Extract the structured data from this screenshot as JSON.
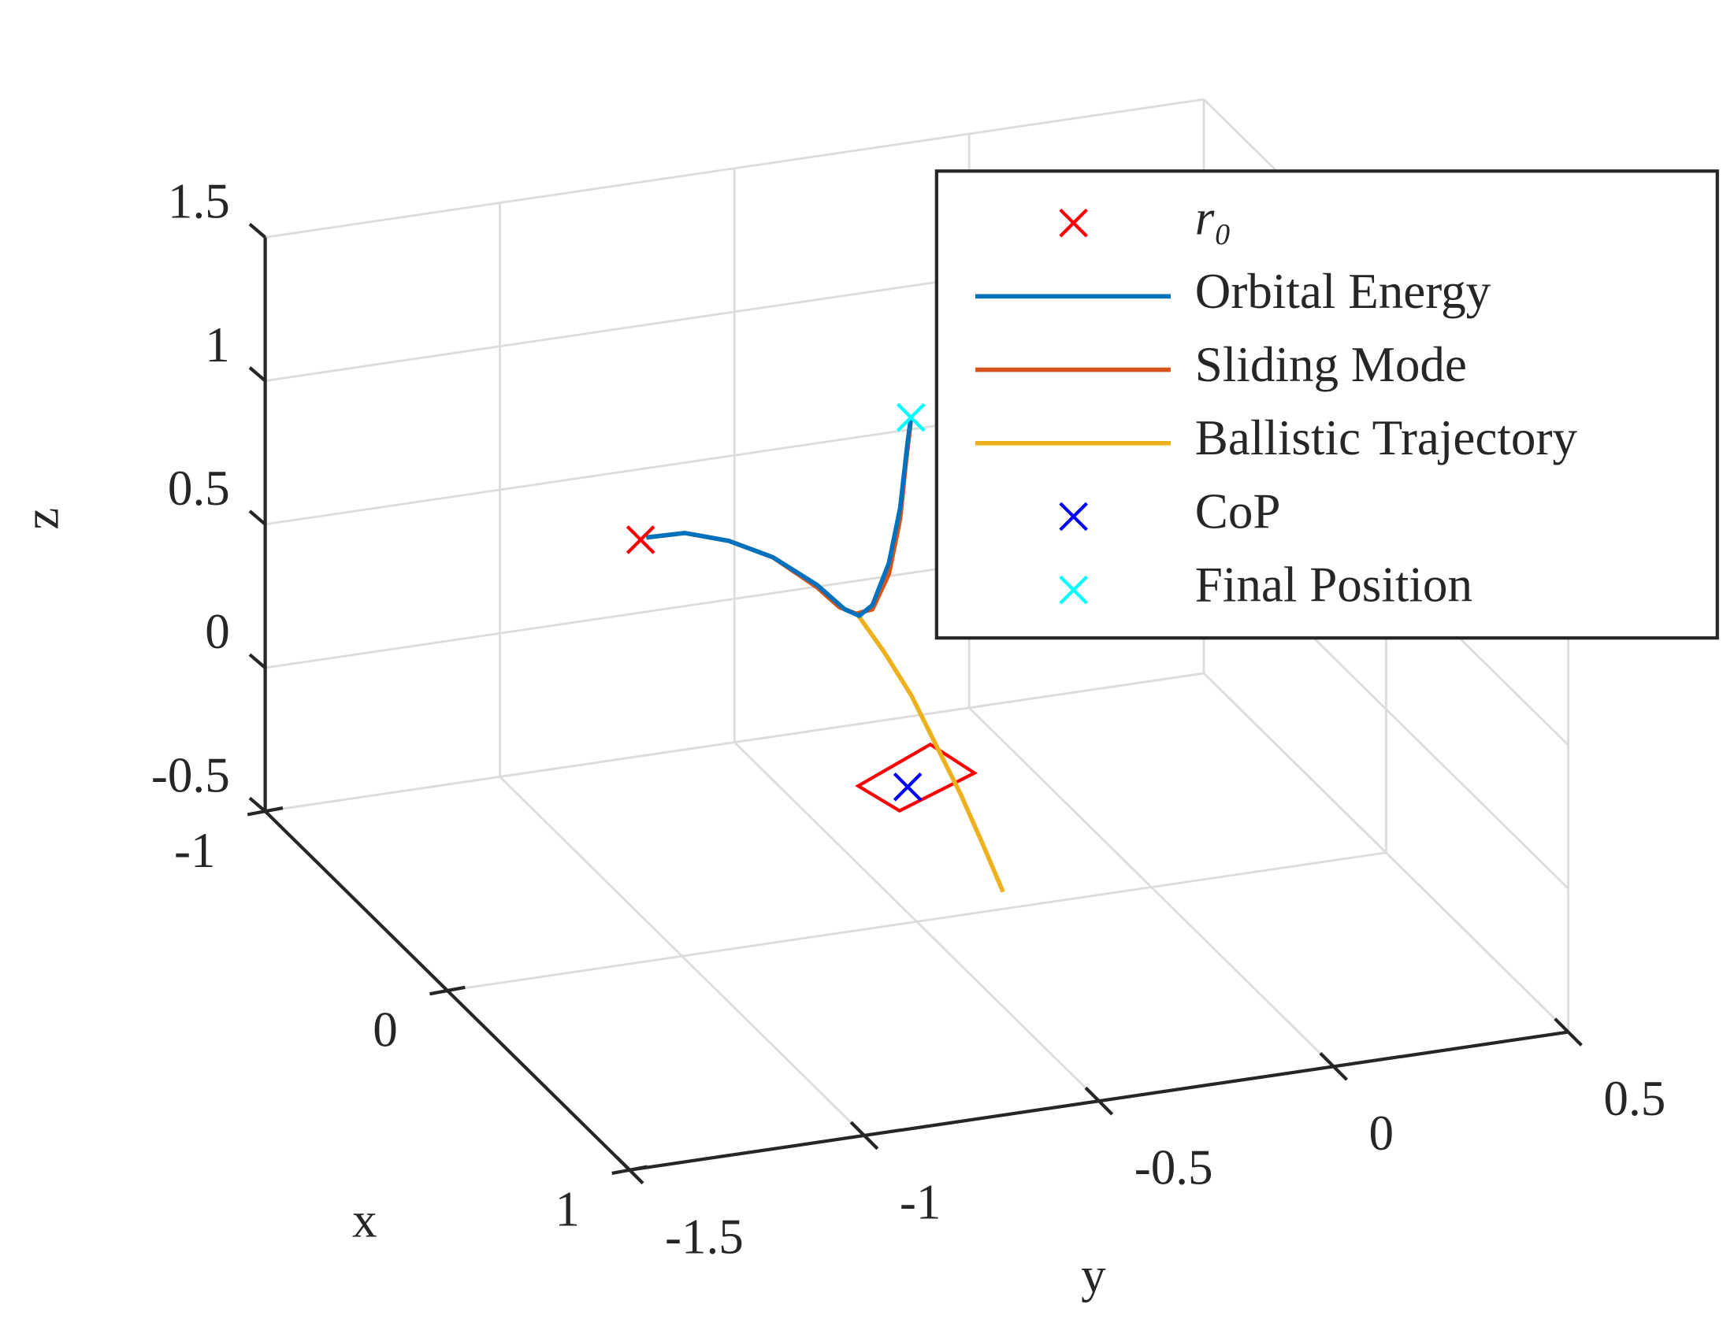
{
  "chart_data": {
    "type": "line3d",
    "xlabel": "x",
    "ylabel": "y",
    "zlabel": "z",
    "xlim": [
      -1,
      1
    ],
    "ylim": [
      -1.5,
      0.5
    ],
    "zlim": [
      -0.5,
      1.5
    ],
    "xticks": [
      -1,
      0,
      1
    ],
    "yticks": [
      -1.5,
      -1,
      -0.5,
      0,
      0.5
    ],
    "zticks": [
      -0.5,
      0,
      0.5,
      1,
      1.5
    ],
    "grid": true,
    "legend": "upper right",
    "polygon": {
      "color": "#ff0000",
      "x": [
        -0.7,
        -0.85,
        -0.68,
        -0.55
      ],
      "y": [
        -0.353,
        -0.141,
        -0.113,
        -0.323
      ],
      "z": [
        -0.5,
        -0.5,
        -0.5,
        -0.5
      ]
    },
    "series": [
      {
        "name": "r₀",
        "mode": "markers",
        "color": "#ff0000",
        "x": [
          -0.66
        ],
        "y": [
          -0.832
        ],
        "z": [
          0.498
        ]
      },
      {
        "name": "Orbital Energy",
        "mode": "lines",
        "color": "#0072bd",
        "x": [
          -0.66,
          -0.66,
          -0.66,
          -0.66,
          -0.66,
          -0.66,
          -0.66,
          -0.66,
          -0.66,
          -0.66,
          -0.66,
          -0.66
        ],
        "y": [
          -0.82,
          -0.738,
          -0.644,
          -0.55,
          -0.456,
          -0.397,
          -0.366,
          -0.338,
          -0.303,
          -0.279,
          -0.263,
          -0.256
        ],
        "z": [
          0.503,
          0.499,
          0.449,
          0.369,
          0.25,
          0.151,
          0.121,
          0.152,
          0.29,
          0.477,
          0.704,
          0.786
        ]
      },
      {
        "name": "Sliding Mode",
        "mode": "lines",
        "color": "#d95319",
        "x": [
          -0.66,
          -0.66,
          -0.66,
          -0.66,
          -0.66,
          -0.66,
          -0.66,
          -0.66,
          -0.66,
          -0.66,
          -0.66,
          -0.66
        ],
        "y": [
          -0.82,
          -0.738,
          -0.644,
          -0.55,
          -0.456,
          -0.409,
          -0.373,
          -0.338,
          -0.303,
          -0.279,
          -0.267,
          -0.256
        ],
        "z": [
          0.503,
          0.499,
          0.449,
          0.369,
          0.242,
          0.162,
          0.13,
          0.137,
          0.252,
          0.438,
          0.628,
          0.778
        ]
      },
      {
        "name": "Ballistic Trajectory",
        "mode": "lines",
        "color": "#edb120",
        "x": [
          -0.66,
          -0.56,
          -0.46,
          -0.36,
          -0.26,
          -0.17,
          -0.08
        ],
        "y": [
          -0.373,
          -0.353,
          -0.333,
          -0.313,
          -0.305,
          -0.293,
          -0.285
        ],
        "z": [
          0.134,
          0.057,
          -0.039,
          -0.174,
          -0.267,
          -0.387,
          -0.498
        ]
      },
      {
        "name": "CoP",
        "mode": "markers",
        "color": "#0000ff",
        "x": [
          -0.66
        ],
        "y": [
          -0.263
        ],
        "z": [
          -0.5
        ]
      },
      {
        "name": "Final Position",
        "mode": "markers",
        "color": "#00ffff",
        "x": [
          -0.66
        ],
        "y": [
          -0.256
        ],
        "z": [
          0.786
        ]
      }
    ]
  }
}
